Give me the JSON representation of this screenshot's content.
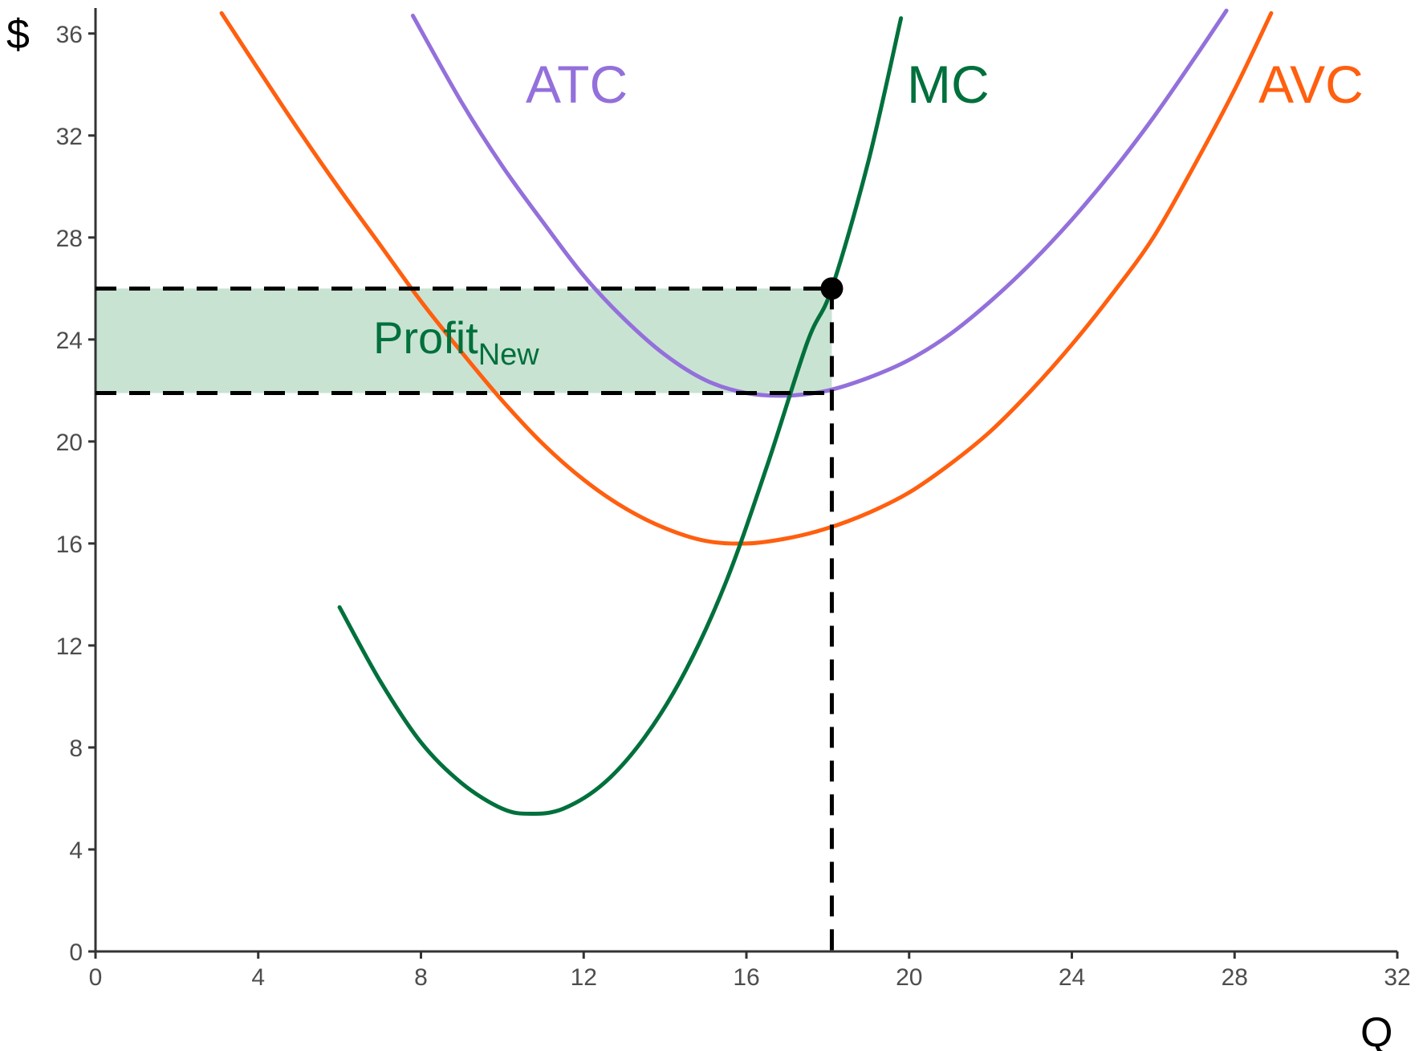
{
  "chart_data": {
    "type": "line",
    "title": "",
    "xlabel": "Q",
    "ylabel": "$",
    "xlim": [
      0,
      32
    ],
    "ylim": [
      0,
      37
    ],
    "x_ticks": [
      0,
      4,
      8,
      12,
      16,
      20,
      24,
      28,
      32
    ],
    "y_ticks": [
      0,
      4,
      8,
      12,
      16,
      20,
      24,
      28,
      32,
      36
    ],
    "grid": false,
    "colors": {
      "ATC": "#9370DB",
      "AVC": "#FF5F0F",
      "MC": "#00703C",
      "profit_fill": "#C9E3D3",
      "guides": "#000000"
    },
    "series": [
      {
        "name": "ATC",
        "x": [
          7.8,
          9,
          10,
          11,
          12,
          13,
          14,
          15,
          16,
          17,
          18,
          19,
          20,
          21,
          22,
          23,
          24,
          25,
          26,
          27,
          27.8
        ],
        "y": [
          36.7,
          33.3,
          30.8,
          28.6,
          26.5,
          24.8,
          23.4,
          22.4,
          21.9,
          21.8,
          22.0,
          22.5,
          23.2,
          24.2,
          25.5,
          27.0,
          28.7,
          30.6,
          32.7,
          35.0,
          36.9
        ]
      },
      {
        "name": "AVC",
        "x": [
          3.1,
          4,
          5,
          6,
          7,
          8,
          9,
          10,
          11,
          12,
          13,
          14,
          15,
          16,
          17,
          18,
          19,
          20,
          21,
          22,
          23,
          24,
          25,
          26,
          27,
          28,
          28.9
        ],
        "y": [
          36.8,
          34.6,
          32.2,
          29.9,
          27.7,
          25.5,
          23.5,
          21.6,
          19.9,
          18.5,
          17.4,
          16.6,
          16.1,
          16.0,
          16.2,
          16.6,
          17.2,
          18.0,
          19.1,
          20.4,
          22.0,
          23.8,
          25.8,
          28.0,
          30.8,
          33.8,
          36.8
        ]
      },
      {
        "name": "MC",
        "x": [
          6.0,
          7,
          8,
          9,
          10,
          10.7,
          11.5,
          12.5,
          13.5,
          14.5,
          15.5,
          16.5,
          17.5,
          18.1,
          19,
          19.8
        ],
        "y": [
          13.5,
          10.6,
          8.2,
          6.6,
          5.6,
          5.4,
          5.6,
          6.6,
          8.4,
          11.0,
          14.5,
          19.0,
          23.9,
          26.0,
          31.0,
          36.6
        ]
      }
    ],
    "labels": {
      "ATC": "ATC",
      "MC": "MC",
      "AVC": "AVC"
    },
    "profit_area": {
      "label": "Profit",
      "subscript": "New",
      "x": [
        0,
        18.1
      ],
      "y": [
        21.9,
        26.0
      ]
    },
    "point": {
      "x": 18.1,
      "y": 26.0
    }
  }
}
